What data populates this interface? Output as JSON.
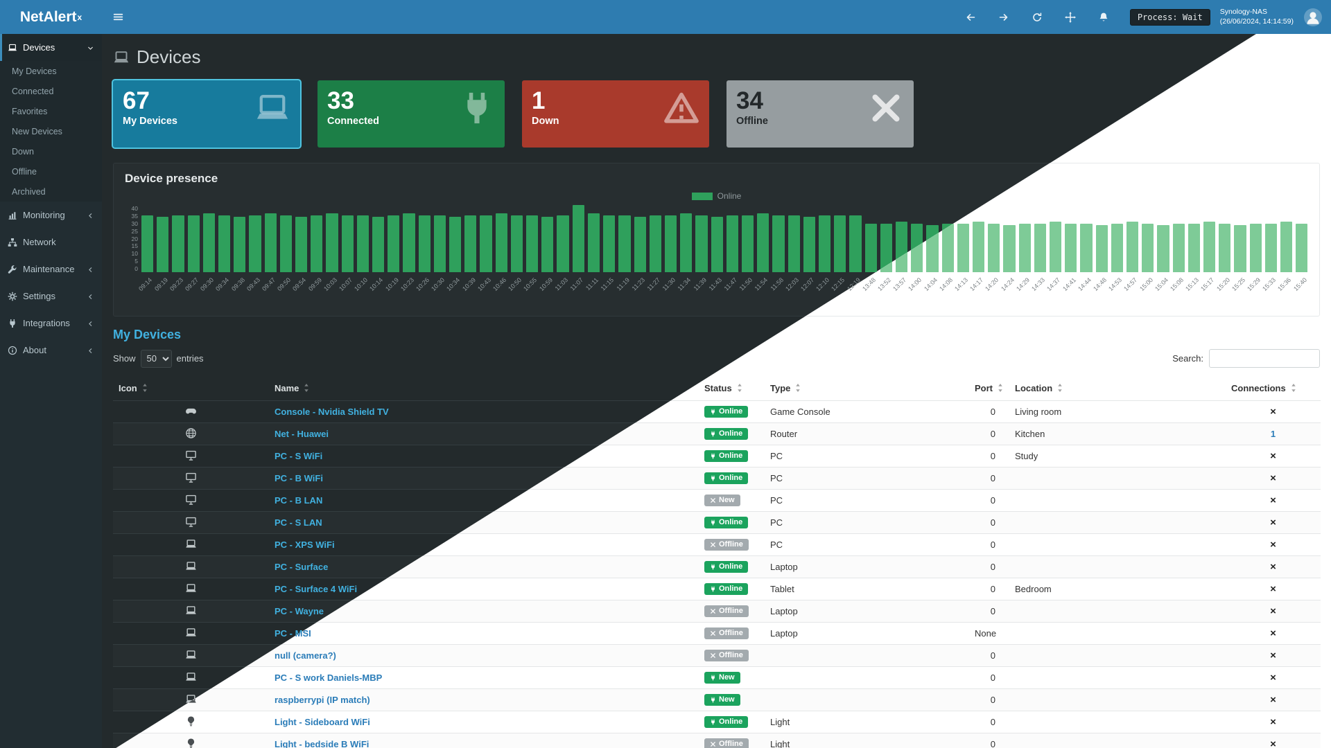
{
  "header": {
    "brand": "NetAlert",
    "brand_sup": "x",
    "nav_icons": [
      "arrow-left-icon",
      "arrow-right-icon",
      "refresh-icon",
      "move-icon",
      "bell-icon"
    ],
    "process_status": "Process: Wait",
    "host_name": "Synology-NAS",
    "host_time": "(26/06/2024, 14:14:59)"
  },
  "sidebar": {
    "items": [
      {
        "id": "devices",
        "label": "Devices",
        "icon": "laptop-icon",
        "chevron": "down",
        "active": true,
        "children": [
          {
            "label": "My Devices"
          },
          {
            "label": "Connected"
          },
          {
            "label": "Favorites"
          },
          {
            "label": "New Devices"
          },
          {
            "label": "Down"
          },
          {
            "label": "Offline"
          },
          {
            "label": "Archived"
          }
        ]
      },
      {
        "id": "monitoring",
        "label": "Monitoring",
        "icon": "chart-icon",
        "chevron": "left"
      },
      {
        "id": "network",
        "label": "Network",
        "icon": "network-icon",
        "chevron": ""
      },
      {
        "id": "maintenance",
        "label": "Maintenance",
        "icon": "wrench-icon",
        "chevron": "left"
      },
      {
        "id": "settings",
        "label": "Settings",
        "icon": "gear-icon",
        "chevron": "left"
      },
      {
        "id": "integrations",
        "label": "Integrations",
        "icon": "plug-icon",
        "chevron": "left"
      },
      {
        "id": "about",
        "label": "About",
        "icon": "info-icon",
        "chevron": "left"
      }
    ]
  },
  "page": {
    "title": "Devices"
  },
  "cards": [
    {
      "value": "67",
      "label": "My Devices",
      "bg": "#177b9d",
      "fg": "#ffffff",
      "icon": "laptop-icon",
      "icon_color": "rgba(255,255,255,0.45)",
      "border": "#4fc4e0"
    },
    {
      "value": "33",
      "label": "Connected",
      "bg": "#1c7f47",
      "fg": "#ffffff",
      "icon": "plug-icon",
      "icon_color": "rgba(255,255,255,0.45)",
      "border": ""
    },
    {
      "value": "1",
      "label": "Down",
      "bg": "#a93a2c",
      "fg": "#ffffff",
      "icon": "warning-icon",
      "icon_color": "rgba(255,255,255,0.5)",
      "border": ""
    },
    {
      "value": "34",
      "label": "Offline",
      "bg": "#969da0",
      "fg": "#23282a",
      "icon": "x-icon",
      "icon_color": "rgba(255,255,255,0.75)",
      "border": ""
    }
  ],
  "chart": {
    "title": "Device presence",
    "legend": "Online"
  },
  "chart_data": {
    "type": "bar",
    "title": "Device presence",
    "legend_position": "top-center",
    "grid": false,
    "ylim": [
      0,
      40
    ],
    "yticks": [
      40,
      35,
      30,
      25,
      20,
      15,
      10,
      5,
      0
    ],
    "bar_color_dark": "#2fa05c",
    "bar_color_light": "#7ecb97",
    "x": [
      "09:14",
      "09:19",
      "09:23",
      "09:27",
      "09:30",
      "09:34",
      "09:38",
      "09:43",
      "09:47",
      "09:50",
      "09:54",
      "09:59",
      "10:03",
      "10:07",
      "10:10",
      "10:14",
      "10:19",
      "10:23",
      "10:26",
      "10:30",
      "10:34",
      "10:39",
      "10:43",
      "10:46",
      "10:50",
      "10:55",
      "10:59",
      "11:03",
      "11:07",
      "11:11",
      "11:15",
      "11:19",
      "11:23",
      "11:27",
      "11:30",
      "11:34",
      "11:39",
      "11:43",
      "11:47",
      "11:50",
      "11:54",
      "11:58",
      "12:03",
      "12:07",
      "12:10",
      "12:15",
      "12:19",
      "13:48",
      "13:52",
      "13:57",
      "14:00",
      "14:04",
      "14:08",
      "14:13",
      "14:17",
      "14:20",
      "14:24",
      "14:29",
      "14:33",
      "14:37",
      "14:41",
      "14:44",
      "14:48",
      "14:53",
      "14:57",
      "15:00",
      "15:04",
      "15:08",
      "15:13",
      "15:17",
      "15:20",
      "15:25",
      "15:29",
      "15:33",
      "15:36",
      "15:40"
    ],
    "series": [
      {
        "name": "Online",
        "values": [
          34,
          33,
          34,
          34,
          35,
          34,
          33,
          34,
          35,
          34,
          33,
          34,
          35,
          34,
          34,
          33,
          34,
          35,
          34,
          34,
          33,
          34,
          34,
          35,
          34,
          34,
          33,
          34,
          40,
          35,
          34,
          34,
          33,
          34,
          34,
          35,
          34,
          33,
          34,
          34,
          35,
          34,
          34,
          33,
          34,
          34,
          34,
          29,
          29,
          30,
          29,
          28,
          29,
          29,
          30,
          29,
          28,
          29,
          29,
          30,
          29,
          29,
          28,
          29,
          30,
          29,
          28,
          29,
          29,
          30,
          29,
          28,
          29,
          29,
          30,
          29
        ]
      }
    ]
  },
  "table": {
    "section_title": "My Devices",
    "show_label": "Show",
    "page_length": "50",
    "entries_label": "entries",
    "search_label": "Search:",
    "columns": [
      "Icon",
      "Name",
      "Status",
      "Type",
      "Port",
      "Location",
      "Connections"
    ],
    "rows": [
      {
        "icon": "gamepad-icon",
        "name": "Console - Nvidia Shield TV",
        "status": "Online",
        "badge": "online",
        "type": "Game Console",
        "port": "0",
        "location": "Living room",
        "connections": "×"
      },
      {
        "icon": "globe-icon",
        "name": "Net - Huawei",
        "status": "Online",
        "badge": "online",
        "type": "Router",
        "port": "0",
        "location": "Kitchen",
        "connections": "1"
      },
      {
        "icon": "desktop-icon",
        "name": "PC - S WiFi",
        "status": "Online",
        "badge": "online",
        "type": "PC",
        "port": "0",
        "location": "Study",
        "connections": "×"
      },
      {
        "icon": "desktop-icon",
        "name": "PC - B WiFi",
        "status": "Online",
        "badge": "online",
        "type": "PC",
        "port": "0",
        "location": "",
        "connections": "×"
      },
      {
        "icon": "desktop-icon",
        "name": "PC - B LAN",
        "status": "New",
        "badge": "offline",
        "type": "PC",
        "port": "0",
        "location": "",
        "connections": "×"
      },
      {
        "icon": "desktop-icon",
        "name": "PC - S LAN",
        "status": "Online",
        "badge": "online",
        "type": "PC",
        "port": "0",
        "location": "",
        "connections": "×"
      },
      {
        "icon": "laptop-icon",
        "name": "PC - XPS WiFi",
        "status": "Offline",
        "badge": "offline",
        "type": "PC",
        "port": "0",
        "location": "",
        "connections": "×"
      },
      {
        "icon": "laptop-icon",
        "name": "PC - Surface",
        "status": "Online",
        "badge": "online",
        "type": "Laptop",
        "port": "0",
        "location": "",
        "connections": "×"
      },
      {
        "icon": "laptop-icon",
        "name": "PC - Surface 4 WiFi",
        "status": "Online",
        "badge": "online",
        "type": "Tablet",
        "port": "0",
        "location": "Bedroom",
        "connections": "×"
      },
      {
        "icon": "laptop-icon",
        "name": "PC - Wayne",
        "status": "Offline",
        "badge": "offline",
        "type": "Laptop",
        "port": "0",
        "location": "",
        "connections": "×"
      },
      {
        "icon": "laptop-icon",
        "name": "PC - MSI",
        "status": "Offline",
        "badge": "offline",
        "type": "Laptop",
        "port": "None",
        "location": "",
        "connections": "×"
      },
      {
        "icon": "laptop-icon",
        "name": "null (camera?)",
        "status": "Offline",
        "badge": "offline",
        "type": "",
        "port": "0",
        "location": "",
        "connections": "×"
      },
      {
        "icon": "laptop-icon",
        "name": "PC - S work Daniels-MBP",
        "status": "New",
        "badge": "online",
        "type": "",
        "port": "0",
        "location": "",
        "connections": "×"
      },
      {
        "icon": "laptop-icon",
        "name": "raspberrypi (IP match)",
        "status": "New",
        "badge": "online",
        "type": "",
        "port": "0",
        "location": "",
        "connections": "×"
      },
      {
        "icon": "bulb-icon",
        "name": "Light - Sideboard WiFi",
        "status": "Online",
        "badge": "online",
        "type": "Light",
        "port": "0",
        "location": "",
        "connections": "×"
      },
      {
        "icon": "bulb-icon",
        "name": "Light - bedside B WiFi",
        "status": "Offline",
        "badge": "offline",
        "type": "Light",
        "port": "0",
        "location": "",
        "connections": "×"
      }
    ]
  },
  "colors": {
    "navbar_blue": "#2e7cb0",
    "sidebar_dark": "#222d32",
    "badge_online_green": "#1ba35d",
    "badge_offline_gray": "#a3aaae",
    "link_dark_theme": "#41b1e0",
    "link_light_theme": "#2a7cb8"
  }
}
